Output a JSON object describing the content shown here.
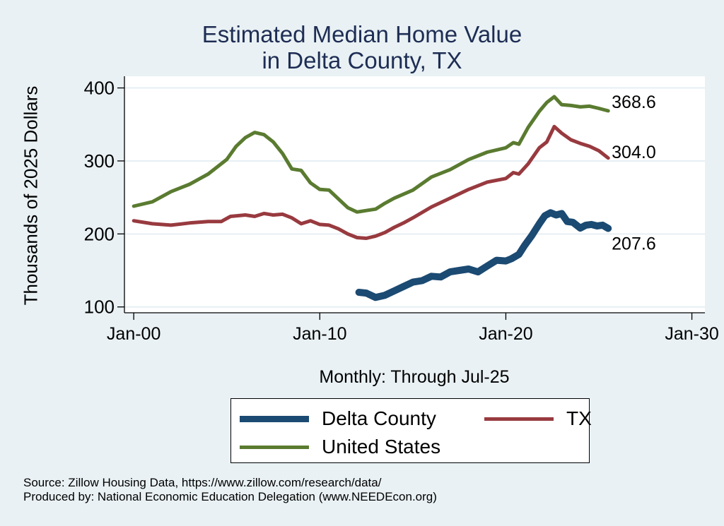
{
  "chart_data": {
    "type": "line",
    "title": [
      "Estimated Median Home Value",
      "in Delta County, TX"
    ],
    "xlabel": "Monthly: Through Jul-25",
    "ylabel": "Thousands of 2025 Dollars",
    "xlim": [
      1999.5,
      2030.7
    ],
    "ylim": [
      92,
      416
    ],
    "x_ticks": [
      {
        "value": 2000,
        "label": "Jan-00"
      },
      {
        "value": 2010,
        "label": "Jan-10"
      },
      {
        "value": 2020,
        "label": "Jan-20"
      },
      {
        "value": 2030,
        "label": "Jan-30"
      }
    ],
    "y_ticks": [
      {
        "value": 100,
        "label": "100"
      },
      {
        "value": 200,
        "label": "200"
      },
      {
        "value": 300,
        "label": "300"
      },
      {
        "value": 400,
        "label": "400"
      }
    ],
    "grid": true,
    "legend_position": "bottom",
    "series": [
      {
        "name": "Delta County",
        "color": "#1b4a72",
        "weight": "thick",
        "end_label": "207.6",
        "x": [
          2012.1,
          2012.5,
          2013.0,
          2013.5,
          2014.0,
          2014.5,
          2015.0,
          2015.5,
          2016.0,
          2016.5,
          2017.0,
          2017.5,
          2018.0,
          2018.5,
          2019.0,
          2019.5,
          2020.0,
          2020.3,
          2020.7,
          2021.0,
          2021.4,
          2021.8,
          2022.1,
          2022.4,
          2022.7,
          2023.0,
          2023.3,
          2023.6,
          2024.0,
          2024.3,
          2024.6,
          2024.9,
          2025.2,
          2025.5
        ],
        "y": [
          120,
          119,
          113,
          116,
          122,
          128,
          134,
          136,
          142,
          141,
          148,
          150,
          152,
          148,
          156,
          164,
          163,
          166,
          172,
          184,
          198,
          214,
          225,
          229,
          226,
          228,
          217,
          216,
          208,
          212,
          213,
          211,
          212,
          207.6
        ]
      },
      {
        "name": "TX",
        "color": "#983a3f",
        "weight": "normal",
        "end_label": "304.0",
        "x": [
          2000.0,
          2001.0,
          2002.0,
          2003.0,
          2004.0,
          2004.7,
          2005.2,
          2006.0,
          2006.5,
          2007.0,
          2007.5,
          2008.0,
          2008.5,
          2009.0,
          2009.5,
          2010.0,
          2010.5,
          2011.0,
          2011.5,
          2012.0,
          2012.5,
          2013.0,
          2013.5,
          2014.0,
          2014.5,
          2015.0,
          2016.0,
          2017.0,
          2018.0,
          2019.0,
          2020.0,
          2020.4,
          2020.7,
          2021.2,
          2021.8,
          2022.2,
          2022.6,
          2023.0,
          2023.5,
          2024.0,
          2024.5,
          2025.0,
          2025.5
        ],
        "y": [
          218,
          214,
          212,
          215,
          217,
          217,
          224,
          226,
          224,
          228,
          226,
          227,
          222,
          214,
          218,
          213,
          212,
          207,
          200,
          195,
          194,
          197,
          202,
          209,
          215,
          222,
          237,
          249,
          261,
          271,
          276,
          284,
          282,
          296,
          318,
          326,
          347,
          338,
          329,
          324,
          320,
          314,
          304
        ]
      },
      {
        "name": "United States",
        "color": "#5a7b30",
        "weight": "normal",
        "end_label": "368.6",
        "x": [
          2000.0,
          2001.0,
          2002.0,
          2003.0,
          2004.0,
          2005.0,
          2005.5,
          2006.0,
          2006.5,
          2007.0,
          2007.5,
          2008.0,
          2008.5,
          2009.0,
          2009.5,
          2010.0,
          2010.5,
          2011.0,
          2011.5,
          2012.0,
          2012.5,
          2013.0,
          2013.5,
          2014.0,
          2015.0,
          2016.0,
          2017.0,
          2018.0,
          2019.0,
          2020.0,
          2020.4,
          2020.7,
          2021.2,
          2021.8,
          2022.2,
          2022.6,
          2023.0,
          2023.5,
          2024.0,
          2024.5,
          2025.0,
          2025.5
        ],
        "y": [
          238,
          244,
          258,
          268,
          282,
          302,
          320,
          332,
          339,
          336,
          326,
          310,
          289,
          287,
          270,
          261,
          260,
          248,
          236,
          230,
          232,
          234,
          242,
          249,
          260,
          278,
          288,
          302,
          312,
          318,
          325,
          323,
          346,
          368,
          380,
          388,
          377,
          376,
          374,
          375,
          372,
          368.6
        ]
      }
    ],
    "legend": [
      {
        "name": "Delta County",
        "color": "#1b4a72"
      },
      {
        "name": "TX",
        "color": "#983a3f"
      },
      {
        "name": "United States",
        "color": "#5a7b30"
      }
    ]
  },
  "notes": {
    "source": "Source: Zillow Housing Data, https://www.zillow.com/research/data/",
    "produced": "Produced by: National Economic Education Delegation (www.NEEDEcon.org)"
  }
}
